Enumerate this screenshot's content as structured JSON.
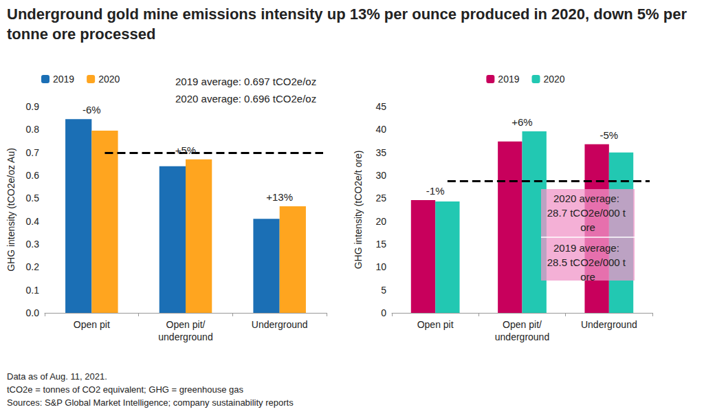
{
  "title": "Underground gold mine emissions intensity up 13% per ounce produced in 2020, down 5% per tonne ore processed",
  "footnotes": [
    "Data as of Aug. 11, 2021.",
    "tCO2e = tonnes of CO2 equivalent; GHG = greenhouse gas",
    "Sources: S&P Global Market Intelligence; company sustainability reports"
  ],
  "chart_data": [
    {
      "type": "bar",
      "y_label": "GHG intensity (tCO2e/oz Au)",
      "categories": [
        "Open pit",
        "Open pit/underground",
        "Underground"
      ],
      "series": [
        {
          "name": "2019",
          "color": "#1b6fb5",
          "values": [
            0.845,
            0.64,
            0.41
          ]
        },
        {
          "name": "2020",
          "color": "#ffa51f",
          "values": [
            0.795,
            0.67,
            0.465
          ]
        }
      ],
      "ylim": [
        0,
        0.9
      ],
      "yticks": [
        {
          "value": 0,
          "label": "0.0"
        },
        0.1,
        0.2,
        0.3,
        0.4,
        0.5,
        0.6,
        0.7,
        0.8,
        0.9
      ],
      "grid": false,
      "legend": "top-left",
      "change_labels": [
        "-6%",
        "+5%",
        "+13%"
      ],
      "average_line": 0.697,
      "average_texts": [
        "2019 average: 0.697 tCO2e/oz",
        "2020 average: 0.696 tCO2e/oz"
      ]
    },
    {
      "type": "bar",
      "y_label": "GHG intensity (tCO2e/t ore)",
      "categories": [
        "Open pit",
        "Open pit/underground",
        "Underground"
      ],
      "series": [
        {
          "name": "2019",
          "color": "#c8005c",
          "values": [
            24.6,
            37.4,
            36.8
          ]
        },
        {
          "name": "2020",
          "color": "#22c8b2",
          "values": [
            24.3,
            39.6,
            35.0
          ]
        }
      ],
      "ylim": [
        0,
        45
      ],
      "yticks": [
        0,
        5,
        10,
        15,
        20,
        25,
        30,
        35,
        40,
        45
      ],
      "grid": false,
      "legend": "top",
      "change_labels": [
        "-1%",
        "+6%",
        "-5%"
      ],
      "average_line": 28.7,
      "average_texts": [
        "2020 average: 28.7 tCO2e/000 t ore",
        "2019 average: 28.5 tCO2e/000 t ore"
      ]
    }
  ]
}
